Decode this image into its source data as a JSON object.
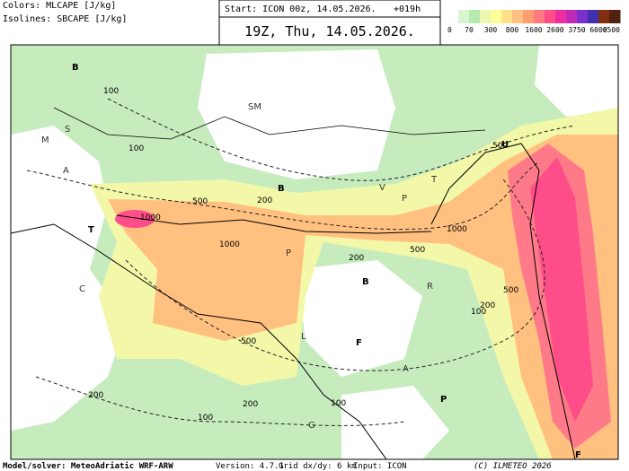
{
  "header": {
    "colors_label": "Colors: MLCAPE [J/kg]",
    "isolines_label": "Isolines: SBCAPE [J/kg]",
    "start": "Start: ICON 00z, 14.05.2026.",
    "lead": "+019h",
    "valid": "19Z, Thu, 14.05.2026."
  },
  "legend": {
    "colors": [
      "#ffffff",
      "#d8f5d0",
      "#b8eab0",
      "#eef7b0",
      "#ffff99",
      "#ffe08a",
      "#ffc080",
      "#ff9c70",
      "#ff7a80",
      "#ff4d8a",
      "#ee2d9e",
      "#c02ab8",
      "#7a30c8",
      "#4030b0",
      "#803010",
      "#502010"
    ],
    "labels": [
      "0",
      "70",
      "300",
      "800",
      "1600",
      "2600",
      "3750",
      "6000",
      "8500"
    ]
  },
  "map": {
    "isoline_labels": [
      "100",
      "100",
      "100",
      "100",
      "100",
      "500",
      "500",
      "500",
      "500",
      "500",
      "1000",
      "1000",
      "1000",
      "200",
      "200",
      "200",
      "200",
      "200"
    ],
    "letters": [
      "B",
      "S",
      "M",
      "A",
      "T",
      "C",
      "SM",
      "B",
      "P",
      "T",
      "U",
      "B",
      "P",
      "L",
      "F",
      "A",
      "P",
      "G",
      "F",
      "V",
      "R"
    ]
  },
  "footer": {
    "model": "Model/solver: MeteoAdriatic WRF-ARW",
    "version": "Version: 4.7.1",
    "grid": "Grid dx/dy: 6 km",
    "input": "Input: ICON",
    "copyright": "(C) ILMETEO 2026"
  }
}
